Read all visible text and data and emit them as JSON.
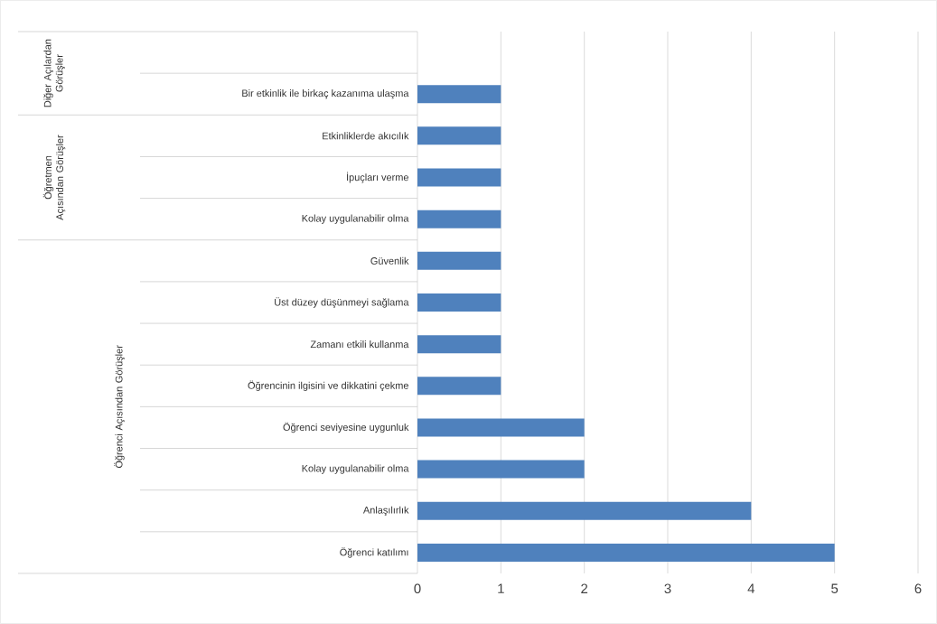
{
  "chart_data": {
    "type": "bar",
    "orientation": "horizontal",
    "categories": [
      null,
      "Bir etkinlik ile birkaç kazanıma ulaşma",
      "Etkinliklerde akıcılık",
      "İpuçları verme",
      "Kolay uygulanabilir olma",
      "Güvenlik",
      "Üst düzey düşünmeyi sağlama",
      "Zamanı etkili kullanma",
      "Öğrencinin ilgisini ve dikkatini çekme",
      "Öğrenci seviyesine uygunluk",
      "Kolay uygulanabilir olma",
      "Anlaşılırlık",
      "Öğrenci katılımı"
    ],
    "values": [
      null,
      1,
      1,
      1,
      1,
      1,
      1,
      1,
      1,
      2,
      2,
      4,
      5
    ],
    "color": "#4f81bd",
    "xlim": [
      0,
      6
    ],
    "xticks": [
      0,
      1,
      2,
      3,
      4,
      5,
      6
    ],
    "grid": "x",
    "annotations": [
      "Diğer Açılardan Görüşler",
      "Öğretmen Açısından Görüşler",
      "Öğrenci Açısından Görüşler"
    ]
  }
}
